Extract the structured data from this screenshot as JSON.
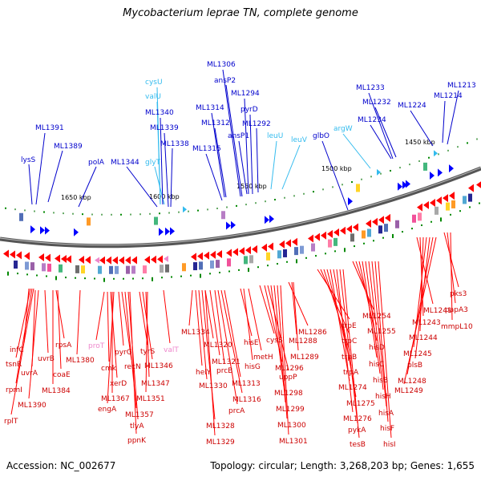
{
  "title": "Mycobacterium leprae TN, complete genome",
  "footer": {
    "accession": "Accession: NC_002677",
    "topology": "Topology: circular; Length: 3,268,203 bp; Genes: 1,655"
  },
  "kbp_ticks": [
    "1650 kbp",
    "1600 kbp",
    "1550 kbp",
    "1500 kbp",
    "1450 kbp"
  ],
  "colors": {
    "forward_gene": "#0000ff",
    "reverse_gene": "#ff0000",
    "forward_label": "#0000cc",
    "reverse_label": "#cc0000",
    "rna_forward": "#33bbee",
    "rna_reverse": "#ee88cc",
    "backbone": "#555555"
  },
  "top_labels": [
    {
      "text": "lysS",
      "kind": "gene"
    },
    {
      "text": "ML1391",
      "kind": "gene"
    },
    {
      "text": "ML1389",
      "kind": "gene"
    },
    {
      "text": "polA",
      "kind": "gene"
    },
    {
      "text": "ML1344",
      "kind": "gene"
    },
    {
      "text": "glyT",
      "kind": "rna"
    },
    {
      "text": "cysU",
      "kind": "rna"
    },
    {
      "text": "valU",
      "kind": "rna"
    },
    {
      "text": "ML1340",
      "kind": "gene"
    },
    {
      "text": "ML1339",
      "kind": "gene"
    },
    {
      "text": "ML1338",
      "kind": "gene"
    },
    {
      "text": "ML1315",
      "kind": "gene"
    },
    {
      "text": "ML1314",
      "kind": "gene"
    },
    {
      "text": "ML1312",
      "kind": "gene"
    },
    {
      "text": "ML1306",
      "kind": "gene"
    },
    {
      "text": "ansP2",
      "kind": "gene"
    },
    {
      "text": "ansP1",
      "kind": "gene"
    },
    {
      "text": "ML1294",
      "kind": "gene"
    },
    {
      "text": "pyrD",
      "kind": "gene"
    },
    {
      "text": "ML1292",
      "kind": "gene"
    },
    {
      "text": "leuU",
      "kind": "rna"
    },
    {
      "text": "leuV",
      "kind": "rna"
    },
    {
      "text": "glbO",
      "kind": "gene"
    },
    {
      "text": "argW",
      "kind": "rna"
    },
    {
      "text": "ML1233",
      "kind": "gene"
    },
    {
      "text": "ML1232",
      "kind": "gene"
    },
    {
      "text": "ML1234",
      "kind": "gene"
    },
    {
      "text": "ML1224",
      "kind": "gene"
    },
    {
      "text": "ML1214",
      "kind": "gene"
    },
    {
      "text": "ML1213",
      "kind": "gene"
    }
  ],
  "bottom_labels": [
    {
      "text": "infC",
      "kind": "gene"
    },
    {
      "text": "tsnR",
      "kind": "gene"
    },
    {
      "text": "rpmI",
      "kind": "gene"
    },
    {
      "text": "rplT",
      "kind": "gene"
    },
    {
      "text": "uvrA",
      "kind": "gene"
    },
    {
      "text": "ML1390",
      "kind": "gene"
    },
    {
      "text": "uvrB",
      "kind": "gene"
    },
    {
      "text": "rpsA",
      "kind": "gene"
    },
    {
      "text": "coaE",
      "kind": "gene"
    },
    {
      "text": "ML1384",
      "kind": "gene"
    },
    {
      "text": "ML1380",
      "kind": "gene"
    },
    {
      "text": "proT",
      "kind": "rna"
    },
    {
      "text": "cmk",
      "kind": "gene"
    },
    {
      "text": "xerD",
      "kind": "gene"
    },
    {
      "text": "ML1367",
      "kind": "gene"
    },
    {
      "text": "engA",
      "kind": "gene"
    },
    {
      "text": "pyrG",
      "kind": "gene"
    },
    {
      "text": "recN",
      "kind": "gene"
    },
    {
      "text": "ML1357",
      "kind": "gene"
    },
    {
      "text": "tlyA",
      "kind": "gene"
    },
    {
      "text": "ppnK",
      "kind": "gene"
    },
    {
      "text": "tyrS",
      "kind": "gene"
    },
    {
      "text": "ML1346",
      "kind": "gene"
    },
    {
      "text": "ML1347",
      "kind": "gene"
    },
    {
      "text": "ML1351",
      "kind": "gene"
    },
    {
      "text": "valT",
      "kind": "rna"
    },
    {
      "text": "ML1334",
      "kind": "gene"
    },
    {
      "text": "helY",
      "kind": "gene"
    },
    {
      "text": "ML1330",
      "kind": "gene"
    },
    {
      "text": "ML1328",
      "kind": "gene"
    },
    {
      "text": "ML1329",
      "kind": "gene"
    },
    {
      "text": "ML1320",
      "kind": "gene"
    },
    {
      "text": "ML1321",
      "kind": "gene"
    },
    {
      "text": "prcB",
      "kind": "gene"
    },
    {
      "text": "prcA",
      "kind": "gene"
    },
    {
      "text": "ML1316",
      "kind": "gene"
    },
    {
      "text": "ML1313",
      "kind": "gene"
    },
    {
      "text": "hisE",
      "kind": "gene"
    },
    {
      "text": "hisG",
      "kind": "gene"
    },
    {
      "text": "metH",
      "kind": "gene"
    },
    {
      "text": "cysS",
      "kind": "gene"
    },
    {
      "text": "ML1296",
      "kind": "gene"
    },
    {
      "text": "uppP",
      "kind": "gene"
    },
    {
      "text": "ML1298",
      "kind": "gene"
    },
    {
      "text": "ML1299",
      "kind": "gene"
    },
    {
      "text": "ML1300",
      "kind": "gene"
    },
    {
      "text": "ML1301",
      "kind": "gene"
    },
    {
      "text": "ML1286",
      "kind": "gene"
    },
    {
      "text": "ML1288",
      "kind": "gene"
    },
    {
      "text": "ML1289",
      "kind": "gene"
    },
    {
      "text": "trpE",
      "kind": "gene"
    },
    {
      "text": "trpC",
      "kind": "gene"
    },
    {
      "text": "trpB",
      "kind": "gene"
    },
    {
      "text": "trpA",
      "kind": "gene"
    },
    {
      "text": "ML1274",
      "kind": "gene"
    },
    {
      "text": "ML1275",
      "kind": "gene"
    },
    {
      "text": "ML1276",
      "kind": "gene"
    },
    {
      "text": "pykA",
      "kind": "gene"
    },
    {
      "text": "tesB",
      "kind": "gene"
    },
    {
      "text": "ML1254",
      "kind": "gene"
    },
    {
      "text": "ML1255",
      "kind": "gene"
    },
    {
      "text": "hisD",
      "kind": "gene"
    },
    {
      "text": "hisC",
      "kind": "gene"
    },
    {
      "text": "hisB",
      "kind": "gene"
    },
    {
      "text": "hisH",
      "kind": "gene"
    },
    {
      "text": "hisA",
      "kind": "gene"
    },
    {
      "text": "hisF",
      "kind": "gene"
    },
    {
      "text": "hisI",
      "kind": "gene"
    },
    {
      "text": "ML1241",
      "kind": "gene"
    },
    {
      "text": "ML1243",
      "kind": "gene"
    },
    {
      "text": "ML1244",
      "kind": "gene"
    },
    {
      "text": "ML1245",
      "kind": "gene"
    },
    {
      "text": "plsB",
      "kind": "gene"
    },
    {
      "text": "ML1248",
      "kind": "gene"
    },
    {
      "text": "ML1249",
      "kind": "gene"
    },
    {
      "text": "pks3",
      "kind": "gene"
    },
    {
      "text": "papA3",
      "kind": "gene"
    },
    {
      "text": "mmpL10",
      "kind": "gene"
    }
  ]
}
